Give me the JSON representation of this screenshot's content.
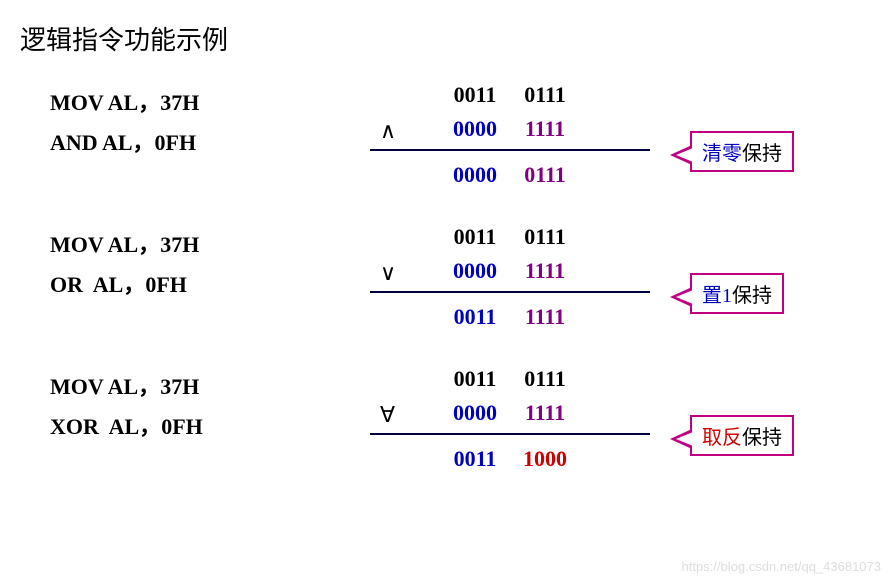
{
  "title": "逻辑指令功能示例",
  "watermark": "https://blog.csdn.net/qq_43681073",
  "colors": {
    "black": "#000000",
    "blue": "#0000c0",
    "purple": "#800080",
    "red": "#d00000",
    "callout_border": "#c00080",
    "callout_em_and": "#0000c0",
    "callout_em_or": "#0000c0",
    "callout_em_xor": "#d00000",
    "hr": "#000040"
  },
  "examples": [
    {
      "code": [
        "MOV AL，37H",
        "AND AL，0FH"
      ],
      "operator": "∧",
      "rows": [
        {
          "left": {
            "text": "0011",
            "color": "#000000"
          },
          "right": {
            "text": "0111",
            "color": "#000000"
          }
        },
        {
          "left": {
            "text": "0000",
            "color": "#0000c0"
          },
          "right": {
            "text": "1111",
            "color": "#800080"
          }
        },
        {
          "left": {
            "text": "0000",
            "color": "#0000c0"
          },
          "right": {
            "text": "0111",
            "color": "#800080"
          }
        }
      ],
      "callout": {
        "em": "清零",
        "em_color": "#0000c0",
        "rest": "保持"
      }
    },
    {
      "code": [
        "MOV AL，37H",
        "OR  AL，0FH"
      ],
      "operator": "∨",
      "rows": [
        {
          "left": {
            "text": "0011",
            "color": "#000000"
          },
          "right": {
            "text": "0111",
            "color": "#000000"
          }
        },
        {
          "left": {
            "text": "0000",
            "color": "#0000c0"
          },
          "right": {
            "text": "1111",
            "color": "#800080"
          }
        },
        {
          "left": {
            "text": "0011",
            "color": "#0000c0"
          },
          "right": {
            "text": "1111",
            "color": "#800080"
          }
        }
      ],
      "callout": {
        "em": "置1",
        "em_color": "#0000c0",
        "rest": "保持"
      }
    },
    {
      "code": [
        "MOV AL，37H",
        "XOR  AL，0FH"
      ],
      "operator": "∀",
      "rows": [
        {
          "left": {
            "text": "0011",
            "color": "#000000"
          },
          "right": {
            "text": "0111",
            "color": "#000000"
          }
        },
        {
          "left": {
            "text": "0000",
            "color": "#0000c0"
          },
          "right": {
            "text": "1111",
            "color": "#800080"
          }
        },
        {
          "left": {
            "text": "0011",
            "color": "#0000c0"
          },
          "right": {
            "text": "1000",
            "color": "#d00000"
          }
        }
      ],
      "callout": {
        "em": "取反",
        "em_color": "#d00000",
        "rest": "保持"
      }
    }
  ]
}
